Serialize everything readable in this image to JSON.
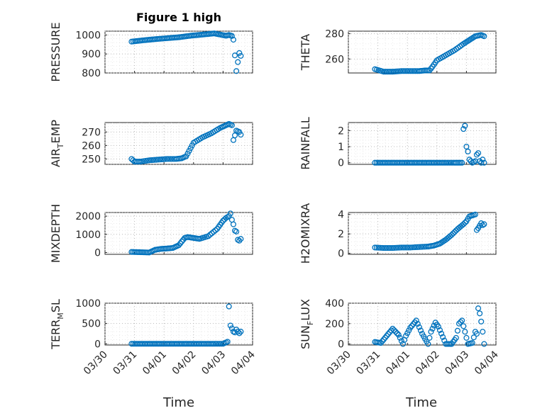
{
  "figure": {
    "title": "Figure 1 high",
    "xlabel": "Time",
    "marker_color": "#0072BD"
  },
  "chart_data": [
    {
      "type": "scatter",
      "ylabel": "PRESSURE",
      "ylim": [
        800,
        1020
      ],
      "yticks": [
        800,
        900,
        1000
      ],
      "xlim": [
        0,
        5
      ],
      "xticks": [
        "03/30",
        "03/31",
        "04/01",
        "04/02",
        "04/03",
        "04/04"
      ],
      "grid": "on",
      "series": [
        {
          "x": [
            0.9,
            1.3,
            1.7,
            2.1,
            2.5,
            2.9,
            3.3,
            3.7,
            4.1,
            4.2,
            4.3,
            4.35,
            4.45,
            4.55,
            4.6
          ],
          "y": [
            965,
            972,
            978,
            983,
            988,
            996,
            1002,
            1008,
            996,
            1000,
            995,
            975,
            810,
            905,
            890
          ]
        }
      ]
    },
    {
      "type": "scatter",
      "ylabel": "THETA",
      "ylim": [
        249,
        282
      ],
      "yticks": [
        260,
        280
      ],
      "xlim": [
        0,
        5
      ],
      "xticks": [
        "03/30",
        "03/31",
        "04/01",
        "04/02",
        "04/03",
        "04/04"
      ],
      "grid": "on",
      "series": [
        {
          "x": [
            0.9,
            1.2,
            1.5,
            1.8,
            2.1,
            2.4,
            2.6,
            2.75,
            2.85,
            3.0,
            3.3,
            3.6,
            3.9,
            4.1,
            4.3,
            4.5,
            4.6
          ],
          "y": [
            252,
            250,
            250,
            250.5,
            250.5,
            250.5,
            251,
            251,
            254,
            259,
            263,
            267,
            272,
            275,
            278,
            279,
            278
          ]
        }
      ]
    },
    {
      "type": "scatter",
      "ylabel": "AIR_TEMP",
      "ylim": [
        246,
        277
      ],
      "yticks": [
        250,
        260,
        270
      ],
      "xlim": [
        0,
        5
      ],
      "xticks": [
        "03/30",
        "03/31",
        "04/01",
        "04/02",
        "04/03",
        "04/04"
      ],
      "grid": "on",
      "series": [
        {
          "x": [
            0.9,
            1.0,
            1.2,
            1.5,
            1.8,
            2.1,
            2.4,
            2.6,
            2.75,
            2.85,
            3.0,
            3.3,
            3.6,
            3.9,
            4.1,
            4.2,
            4.3,
            4.35,
            4.45,
            4.55,
            4.6
          ],
          "y": [
            250,
            248,
            248,
            249,
            249.5,
            250,
            250,
            250.5,
            252,
            256,
            262,
            266,
            269,
            273,
            275,
            276,
            275,
            264,
            271,
            270,
            268
          ]
        }
      ]
    },
    {
      "type": "scatter",
      "ylabel": "RAINFALL",
      "ylim": [
        -0.1,
        2.5
      ],
      "yticks": [
        0,
        1,
        2
      ],
      "xlim": [
        0,
        5
      ],
      "xticks": [
        "03/30",
        "03/31",
        "04/01",
        "04/02",
        "04/03",
        "04/04"
      ],
      "grid": "on",
      "series": [
        {
          "x": [
            0.9,
            1.3,
            1.7,
            2.1,
            2.5,
            2.9,
            3.3,
            3.6,
            3.85,
            3.9,
            3.95,
            4.0,
            4.05,
            4.1,
            4.2,
            4.3,
            4.35,
            4.4,
            4.45,
            4.5,
            4.55,
            4.6
          ],
          "y": [
            0,
            0,
            0,
            0,
            0,
            0,
            0,
            0,
            0,
            2.1,
            2.3,
            1.0,
            0.7,
            0.2,
            0,
            0.1,
            0.5,
            0.6,
            0.1,
            0,
            0.2,
            0
          ]
        }
      ]
    },
    {
      "type": "scatter",
      "ylabel": "MIXDEPTH",
      "ylim": [
        -100,
        2200
      ],
      "yticks": [
        0,
        1000,
        2000
      ],
      "xlim": [
        0,
        5
      ],
      "xticks": [
        "03/30",
        "03/31",
        "04/01",
        "04/02",
        "04/03",
        "04/04"
      ],
      "grid": "on",
      "series": [
        {
          "x": [
            0.9,
            1.1,
            1.3,
            1.5,
            1.7,
            1.9,
            2.1,
            2.3,
            2.5,
            2.7,
            2.8,
            3.0,
            3.2,
            3.5,
            3.8,
            4.0,
            4.1,
            4.2,
            4.25,
            4.3,
            4.35,
            4.4,
            4.45,
            4.5,
            4.55,
            4.6
          ],
          "y": [
            30,
            20,
            10,
            0,
            150,
            200,
            220,
            250,
            400,
            800,
            850,
            800,
            750,
            900,
            1300,
            1750,
            1900,
            2000,
            2150,
            1800,
            1550,
            1200,
            1150,
            700,
            650,
            750
          ]
        }
      ]
    },
    {
      "type": "scatter",
      "ylabel": "H2OMIXRA",
      "ylim": [
        -0.1,
        4.2
      ],
      "yticks": [
        0,
        2,
        4
      ],
      "xlim": [
        0,
        5
      ],
      "xticks": [
        "03/30",
        "03/31",
        "04/01",
        "04/02",
        "04/03",
        "04/04"
      ],
      "grid": "on",
      "series": [
        {
          "x": [
            0.9,
            1.2,
            1.5,
            1.8,
            2.1,
            2.4,
            2.7,
            2.9,
            3.1,
            3.3,
            3.5,
            3.7,
            3.9,
            4.0,
            4.1,
            4.2,
            4.3,
            4.35,
            4.4,
            4.5,
            4.55,
            4.6
          ],
          "y": [
            0.6,
            0.55,
            0.55,
            0.6,
            0.6,
            0.65,
            0.7,
            0.8,
            1.0,
            1.4,
            1.9,
            2.5,
            3.0,
            3.3,
            3.8,
            3.9,
            4.0,
            2.4,
            2.6,
            3.1,
            2.9,
            3.0
          ]
        }
      ]
    },
    {
      "type": "scatter",
      "ylabel": "TERR_MSL",
      "ylim": [
        -30,
        1000
      ],
      "yticks": [
        0,
        500,
        1000
      ],
      "xlim": [
        0,
        5
      ],
      "xticks": [
        "03/30",
        "03/31",
        "04/01",
        "04/02",
        "04/03",
        "04/04"
      ],
      "grid": "on",
      "series": [
        {
          "x": [
            0.9,
            1.3,
            1.7,
            2.1,
            2.5,
            2.9,
            3.3,
            3.7,
            4.0,
            4.15,
            4.2,
            4.25,
            4.3,
            4.35,
            4.4,
            4.45,
            4.5,
            4.55,
            4.6
          ],
          "y": [
            0,
            0,
            0,
            0,
            0,
            0,
            0,
            0,
            0,
            50,
            920,
            450,
            380,
            300,
            280,
            350,
            300,
            260,
            300
          ]
        }
      ]
    },
    {
      "type": "scatter",
      "ylabel": "SUN_FLUX",
      "ylim": [
        -10,
        400
      ],
      "yticks": [
        0,
        200,
        400
      ],
      "xlim": [
        0,
        5
      ],
      "xticks": [
        "03/30",
        "03/31",
        "04/01",
        "04/02",
        "04/03",
        "04/04"
      ],
      "grid": "on",
      "series": [
        {
          "x": [
            0.9,
            1.1,
            1.3,
            1.5,
            1.7,
            1.85,
            1.95,
            2.1,
            2.3,
            2.5,
            2.7,
            2.8,
            2.95,
            3.05,
            3.3,
            3.5,
            3.65,
            3.75,
            3.85,
            3.95,
            4.05,
            4.2,
            4.3,
            4.35,
            4.4,
            4.45,
            4.5,
            4.55,
            4.6
          ],
          "y": [
            20,
            10,
            80,
            150,
            90,
            0,
            80,
            160,
            230,
            100,
            0,
            120,
            210,
            170,
            0,
            0,
            60,
            200,
            230,
            120,
            0,
            10,
            120,
            100,
            350,
            300,
            220,
            120,
            0
          ]
        }
      ]
    }
  ]
}
